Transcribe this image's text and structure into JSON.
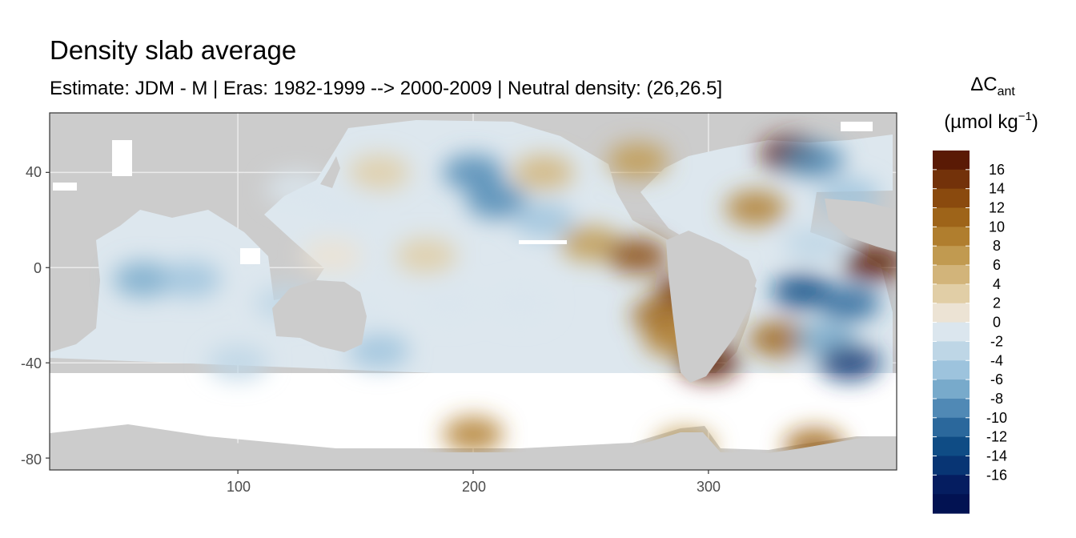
{
  "chart_data": {
    "type": "heatmap",
    "title": "Density slab average",
    "subtitle": "Estimate: JDM - M | Eras: 1982-1999 --> 2000-2009 | Neutral density: (26,26.5]",
    "xlabel": "",
    "ylabel": "",
    "xlim": [
      20,
      380
    ],
    "ylim": [
      -85,
      65
    ],
    "x_ticks": [
      100,
      200,
      300
    ],
    "y_ticks": [
      40,
      0,
      -40,
      -80
    ],
    "grid": true,
    "colors": {
      "land": "#cccccc",
      "no_data": "#ffffff",
      "panel_border": "#333333",
      "grid": "#ebebeb"
    },
    "legend": {
      "title_main": "ΔC",
      "title_sub": "ant",
      "unit_open": "(µmol kg",
      "unit_sup": "−1",
      "unit_close": ")",
      "position": "right",
      "labels": [
        "16",
        "14",
        "12",
        "10",
        "8",
        "6",
        "4",
        "2",
        "0",
        "-2",
        "-4",
        "-6",
        "-8",
        "-10",
        "-12",
        "-14",
        "-16"
      ],
      "colors": [
        "#5a1a05",
        "#73320a",
        "#8a4a0e",
        "#9e6419",
        "#b07e2e",
        "#c19a50",
        "#d2b47a",
        "#e1cea6",
        "#ece3d4",
        "#dbe6ee",
        "#bed6e6",
        "#9dc3dd",
        "#78aacb",
        "#5089b5",
        "#2b689c",
        "#0f4c85",
        "#083574",
        "#051d60",
        "#021252"
      ]
    },
    "series": [
      {
        "name": "",
        "points": [
          [
            125,
            33,
            -2
          ],
          [
            145,
            25,
            -2
          ],
          [
            200,
            40,
            -10
          ],
          [
            210,
            28,
            -10
          ],
          [
            230,
            20,
            -6
          ],
          [
            250,
            10,
            6
          ],
          [
            270,
            5,
            12
          ],
          [
            290,
            -10,
            14
          ],
          [
            280,
            -20,
            10
          ],
          [
            285,
            -30,
            8
          ],
          [
            300,
            -40,
            16
          ],
          [
            335,
            48,
            16
          ],
          [
            345,
            45,
            -10
          ],
          [
            360,
            30,
            -6
          ],
          [
            345,
            10,
            -4
          ],
          [
            370,
            2,
            16
          ],
          [
            340,
            -10,
            -14
          ],
          [
            360,
            -15,
            -12
          ],
          [
            330,
            -30,
            10
          ],
          [
            350,
            -30,
            -8
          ],
          [
            360,
            -40,
            -16
          ],
          [
            60,
            -5,
            -8
          ],
          [
            80,
            -5,
            -6
          ],
          [
            120,
            -15,
            -4
          ],
          [
            150,
            -20,
            -2
          ],
          [
            160,
            -35,
            -6
          ],
          [
            190,
            -15,
            -2
          ],
          [
            220,
            -15,
            -2
          ],
          [
            100,
            -40,
            -4
          ],
          [
            140,
            5,
            0
          ],
          [
            180,
            5,
            2
          ],
          [
            160,
            40,
            2
          ],
          [
            230,
            40,
            4
          ],
          [
            270,
            45,
            6
          ],
          [
            320,
            25,
            8
          ],
          [
            200,
            -70,
            8
          ],
          [
            290,
            -75,
            6
          ],
          [
            345,
            -75,
            10
          ]
        ]
      }
    ]
  }
}
